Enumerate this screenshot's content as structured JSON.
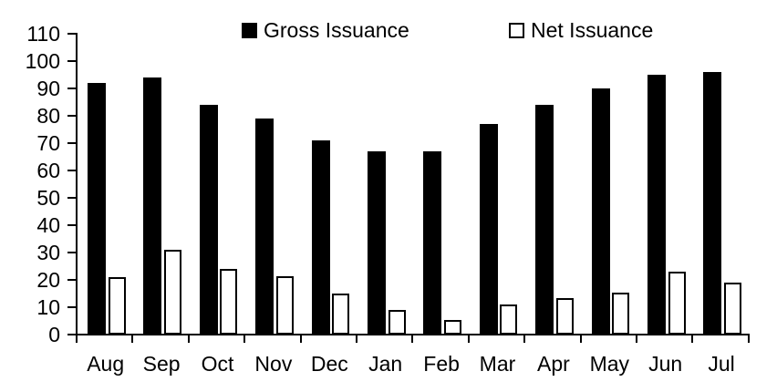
{
  "chart_data": {
    "type": "bar",
    "title": "",
    "xlabel": "",
    "ylabel": "",
    "categories": [
      "Aug",
      "Sep",
      "Oct",
      "Nov",
      "Dec",
      "Jan",
      "Feb",
      "Mar",
      "Apr",
      "May",
      "Jun",
      "Jul"
    ],
    "series": [
      {
        "name": "Gross Issuance",
        "swatch": "filled-black-square",
        "fill": "#000000",
        "border": "#000000",
        "values": [
          92,
          94,
          84,
          79,
          71,
          67,
          67,
          77,
          84,
          90,
          95,
          96
        ]
      },
      {
        "name": "Net Issuance",
        "swatch": "hollow-white-square",
        "fill": "#ffffff",
        "border": "#000000",
        "values": [
          21,
          31,
          24,
          21.5,
          15,
          9,
          5.5,
          11,
          13.5,
          15.5,
          23,
          19
        ]
      }
    ],
    "ylim": [
      0,
      110
    ],
    "yticks": [
      0,
      10,
      20,
      30,
      40,
      50,
      60,
      70,
      80,
      90,
      100,
      110
    ],
    "grid": false,
    "legend_position": "top"
  },
  "colors": {
    "background": "#ffffff",
    "axis": "#000000",
    "text": "#000000",
    "gross_bar": "#000000",
    "net_bar_fill": "#ffffff",
    "net_bar_border": "#000000"
  }
}
